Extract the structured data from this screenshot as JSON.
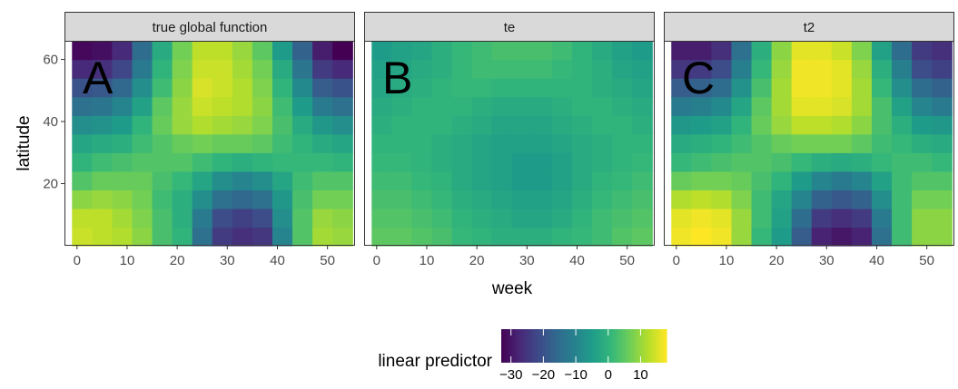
{
  "chart_data": {
    "type": "heatmap",
    "xlabel": "week",
    "ylabel": "latitude",
    "xlim": [
      -2.5,
      55.5
    ],
    "ylim": [
      0,
      66
    ],
    "x_ticks": [
      0,
      10,
      20,
      30,
      40,
      50
    ],
    "y_ticks": [
      20,
      40,
      60
    ],
    "x_centers": [
      1,
      5,
      9,
      13,
      17,
      21,
      25,
      29,
      33,
      37,
      41,
      45,
      49,
      53
    ],
    "y_centers": [
      3,
      9,
      15,
      21,
      27,
      33,
      39,
      45,
      51,
      57,
      63
    ],
    "colorscale": {
      "title": "linear predictor",
      "min": -33,
      "max": 18,
      "ticks": [
        -30,
        -20,
        -10,
        0,
        10
      ],
      "tick_labels": [
        "−30",
        "−20",
        "−10",
        "0",
        "10"
      ],
      "colors": [
        "#440154",
        "#482878",
        "#3e4989",
        "#31688e",
        "#26828e",
        "#1f9e89",
        "#35b779",
        "#6ece58",
        "#b5de2b",
        "#fde725"
      ]
    },
    "panels": [
      {
        "name": "true global function",
        "letter": "A",
        "z": [
          [
            14,
            13,
            12,
            9,
            3,
            0,
            -14,
            -24,
            -26,
            -25,
            -10,
            4,
            11,
            10
          ],
          [
            13,
            13,
            11,
            8,
            3,
            -1,
            -12,
            -21,
            -23,
            -21,
            -8,
            4,
            10,
            9
          ],
          [
            9,
            10,
            9,
            7,
            2,
            -1,
            -8,
            -14,
            -16,
            -14,
            -6,
            3,
            7,
            7
          ],
          [
            4,
            6,
            6,
            6,
            3,
            1,
            -3,
            -8,
            -10,
            -8,
            -3,
            2,
            4,
            4
          ],
          [
            0,
            2,
            3,
            4,
            4,
            4,
            2,
            0,
            -1,
            0,
            1,
            1,
            1,
            0
          ],
          [
            -3,
            -2,
            -1,
            2,
            4,
            6,
            7,
            6,
            6,
            5,
            2,
            0,
            -2,
            -3
          ],
          [
            -8,
            -7,
            -5,
            0,
            6,
            10,
            12,
            11,
            10,
            8,
            3,
            -2,
            -6,
            -8
          ],
          [
            -14,
            -13,
            -10,
            -4,
            5,
            10,
            14,
            13,
            12,
            9,
            2,
            -5,
            -12,
            -14
          ],
          [
            -20,
            -19,
            -16,
            -8,
            2,
            9,
            15,
            14,
            12,
            8,
            0,
            -9,
            -18,
            -20
          ],
          [
            -27,
            -26,
            -22,
            -12,
            0,
            8,
            14,
            14,
            11,
            7,
            -2,
            -13,
            -24,
            -27
          ],
          [
            -32,
            -31,
            -27,
            -15,
            -2,
            7,
            13,
            13,
            10,
            5,
            -5,
            -17,
            -29,
            -33
          ]
        ]
      },
      {
        "name": "te",
        "letter": "B",
        "z": [
          [
            5,
            5,
            4,
            3,
            1,
            0,
            -1,
            -1,
            -1,
            0,
            1,
            2,
            4,
            5
          ],
          [
            4,
            4,
            3,
            2,
            0,
            -1,
            -2,
            -3,
            -3,
            -2,
            0,
            2,
            3,
            4
          ],
          [
            3,
            3,
            2,
            1,
            -1,
            -2,
            -3,
            -4,
            -4,
            -3,
            -1,
            1,
            2,
            3
          ],
          [
            2,
            2,
            1,
            0,
            -2,
            -3,
            -4,
            -5,
            -5,
            -4,
            -2,
            0,
            1,
            2
          ],
          [
            1,
            1,
            0,
            -1,
            -2,
            -3,
            -4,
            -5,
            -5,
            -4,
            -2,
            -1,
            0,
            1
          ],
          [
            0,
            0,
            0,
            -1,
            -2,
            -3,
            -4,
            -4,
            -4,
            -3,
            -2,
            -1,
            0,
            0
          ],
          [
            -1,
            0,
            0,
            0,
            -1,
            -2,
            -3,
            -3,
            -3,
            -2,
            -1,
            0,
            0,
            -1
          ],
          [
            -2,
            -1,
            0,
            0,
            0,
            -1,
            -2,
            -2,
            -2,
            -1,
            0,
            0,
            -1,
            -2
          ],
          [
            -3,
            -2,
            -1,
            0,
            1,
            1,
            0,
            0,
            0,
            0,
            0,
            -1,
            -2,
            -3
          ],
          [
            -4,
            -3,
            -2,
            -1,
            1,
            2,
            2,
            2,
            2,
            1,
            0,
            -1,
            -3,
            -4
          ],
          [
            -5,
            -4,
            -3,
            -1,
            1,
            2,
            3,
            3,
            3,
            2,
            0,
            -2,
            -4,
            -5
          ]
        ]
      },
      {
        "name": "t2",
        "letter": "C",
        "z": [
          [
            17,
            18,
            17,
            10,
            1,
            -5,
            -18,
            -28,
            -30,
            -28,
            -14,
            2,
            9,
            9
          ],
          [
            16,
            17,
            16,
            10,
            2,
            -4,
            -15,
            -24,
            -26,
            -24,
            -12,
            2,
            9,
            9
          ],
          [
            12,
            13,
            12,
            8,
            2,
            -3,
            -10,
            -17,
            -19,
            -17,
            -8,
            2,
            7,
            7
          ],
          [
            6,
            7,
            7,
            6,
            3,
            0,
            -5,
            -10,
            -12,
            -10,
            -4,
            2,
            4,
            4
          ],
          [
            1,
            2,
            3,
            4,
            4,
            3,
            1,
            -1,
            -2,
            -1,
            1,
            2,
            2,
            1
          ],
          [
            -2,
            -1,
            0,
            2,
            4,
            6,
            7,
            7,
            7,
            5,
            2,
            1,
            -1,
            -2
          ],
          [
            -6,
            -5,
            -4,
            0,
            6,
            10,
            13,
            13,
            12,
            9,
            3,
            -1,
            -5,
            -6
          ],
          [
            -12,
            -11,
            -9,
            -3,
            5,
            11,
            16,
            16,
            15,
            11,
            3,
            -4,
            -10,
            -12
          ],
          [
            -18,
            -17,
            -15,
            -7,
            3,
            11,
            17,
            17,
            16,
            11,
            1,
            -8,
            -15,
            -17
          ],
          [
            -25,
            -24,
            -21,
            -11,
            1,
            10,
            17,
            17,
            16,
            10,
            -1,
            -11,
            -21,
            -23
          ],
          [
            -29,
            -29,
            -26,
            -14,
            -1,
            9,
            16,
            16,
            14,
            8,
            -4,
            -15,
            -24,
            -26
          ]
        ]
      }
    ]
  }
}
